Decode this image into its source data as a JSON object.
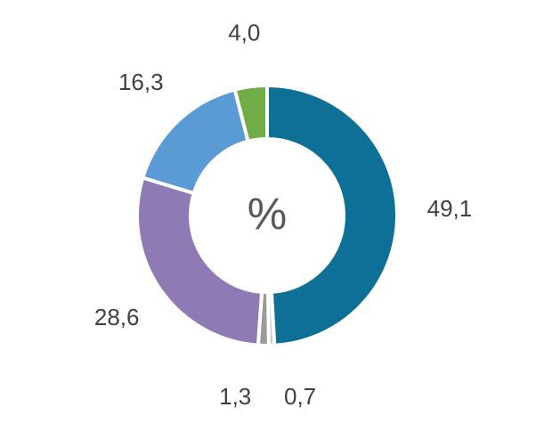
{
  "chart_data": {
    "type": "donut",
    "center_text": "%",
    "values": [
      49.1,
      0.7,
      1.3,
      28.6,
      16.3,
      4.0
    ],
    "value_labels": [
      "49,1",
      "0,7",
      "1,3",
      "28,6",
      "16,3",
      "4,0"
    ],
    "colors": [
      "#0e7096",
      "#c9c9c9",
      "#9a9a9a",
      "#8e7bb5",
      "#5b9bd5",
      "#70ad47"
    ]
  }
}
